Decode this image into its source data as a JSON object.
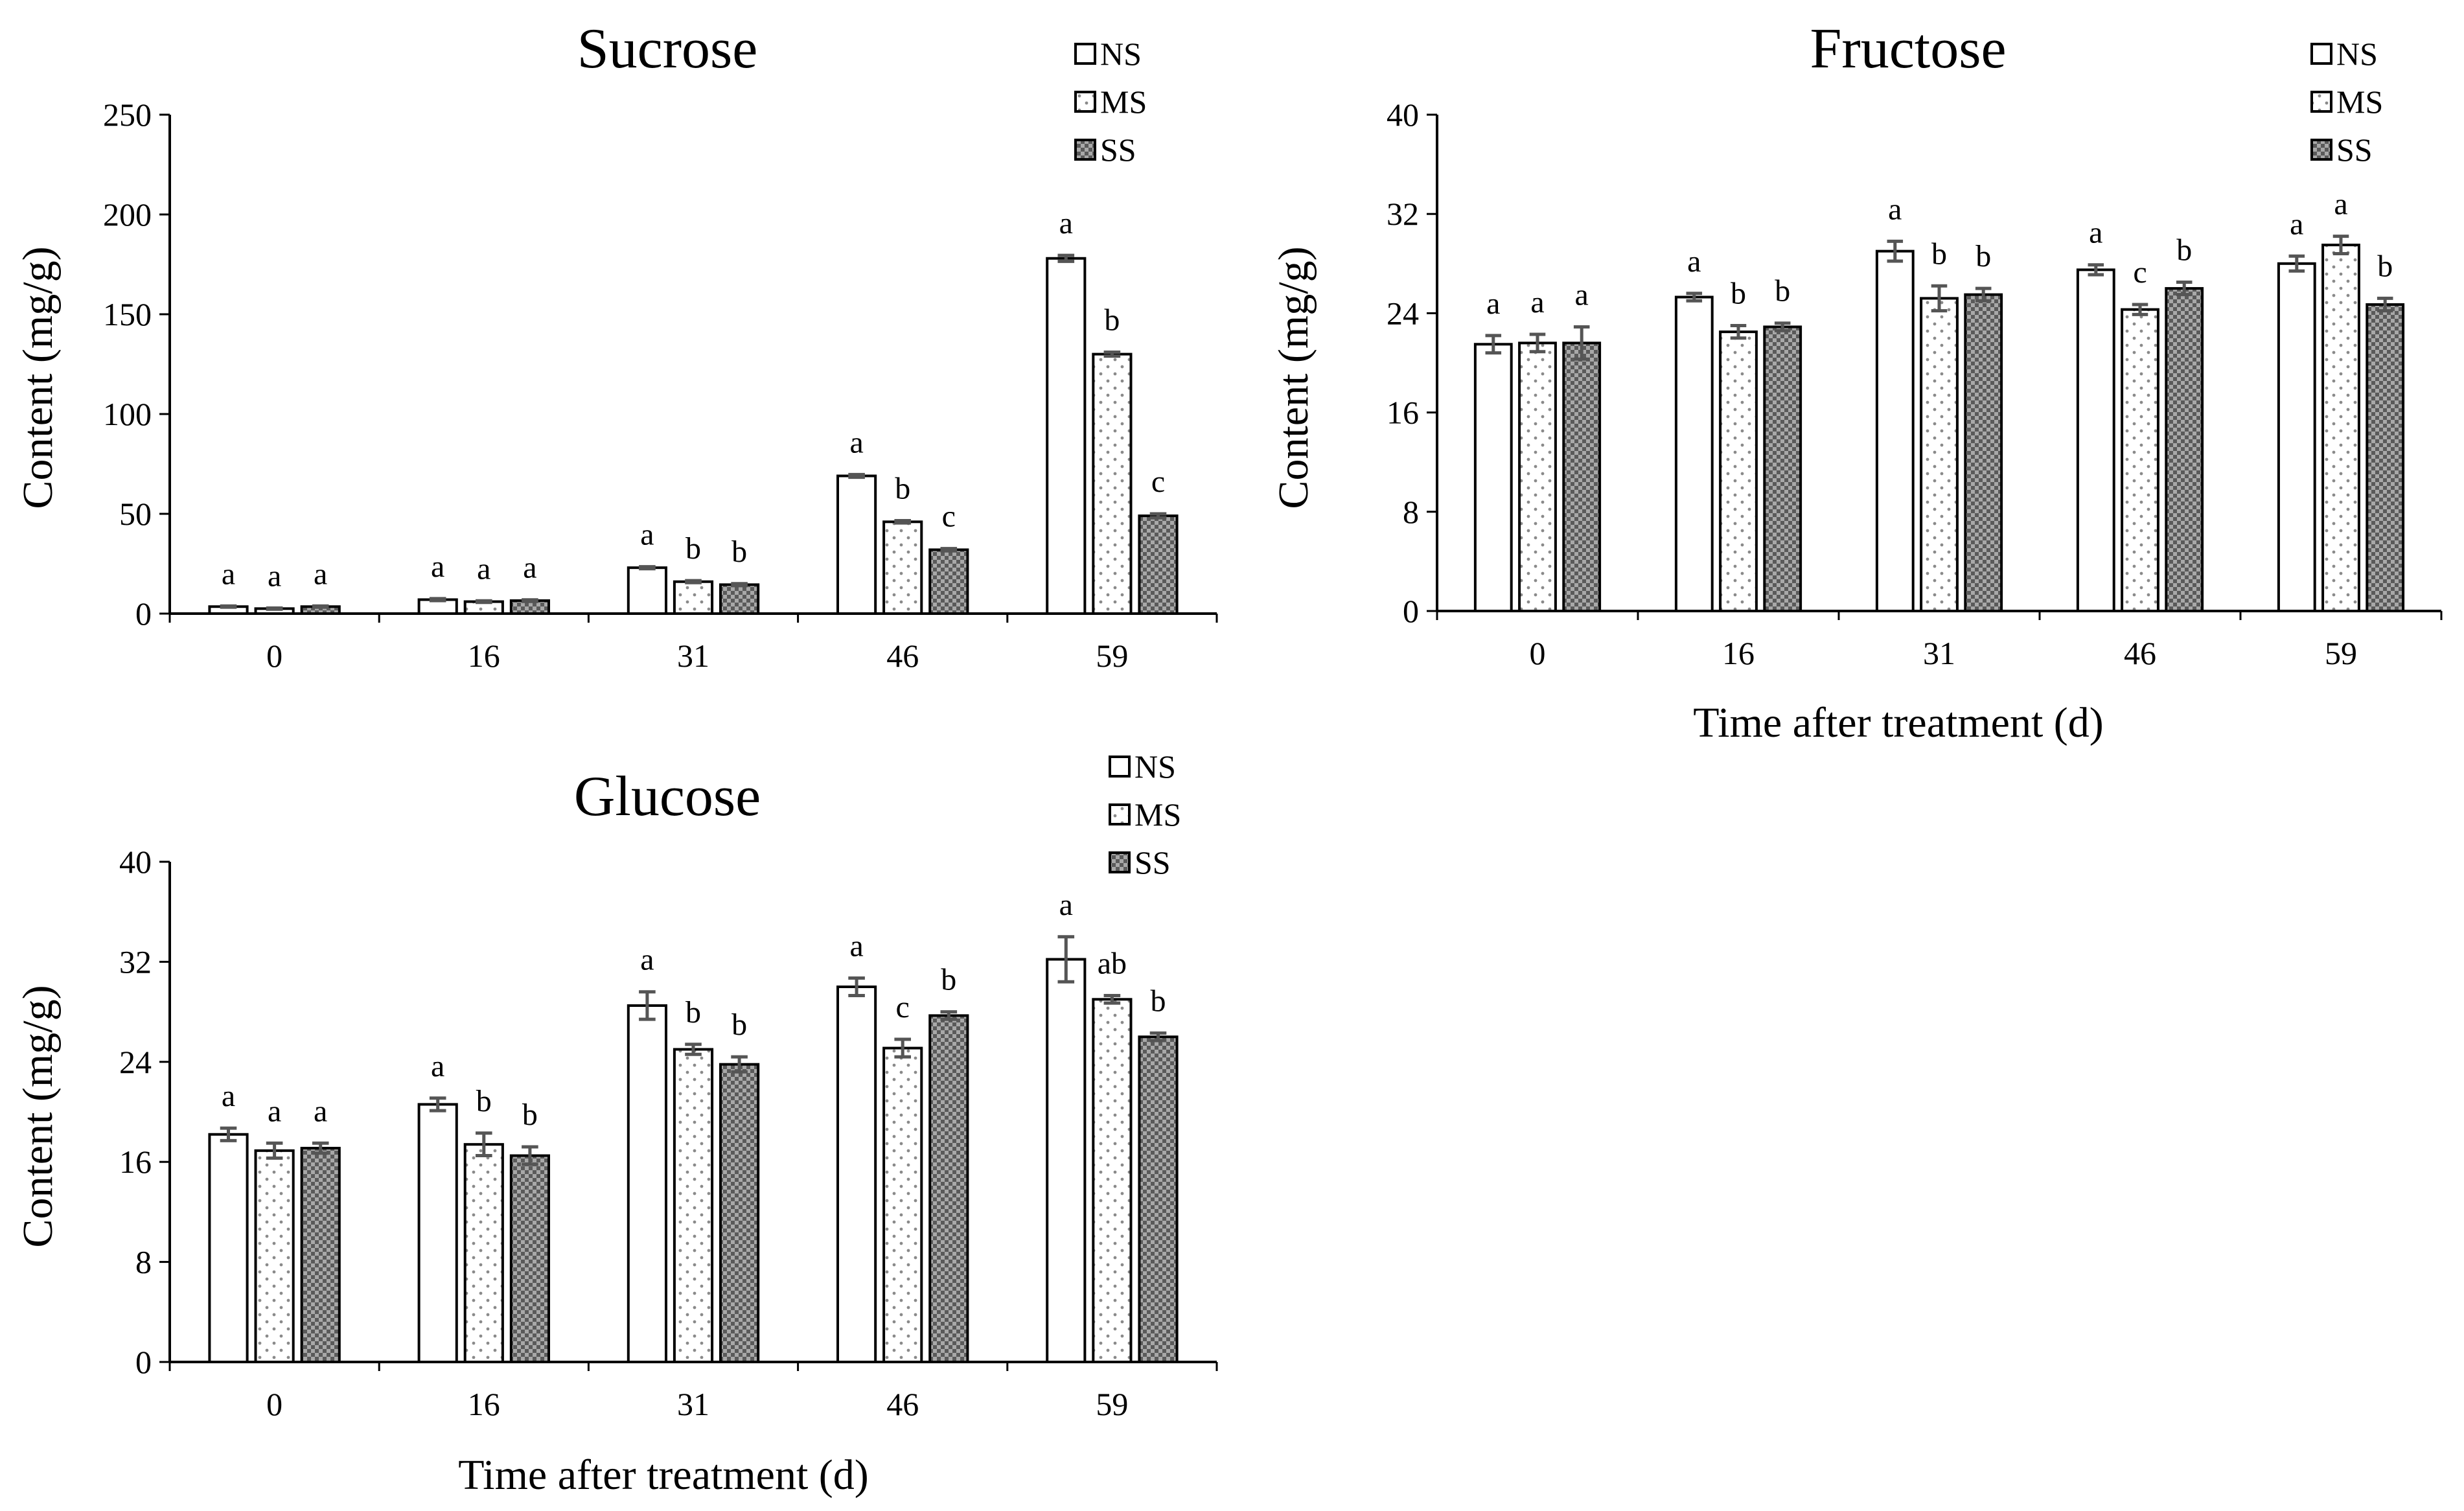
{
  "chart_data": [
    {
      "id": "sucrose",
      "type": "bar",
      "title": "Sucrose",
      "ylabel": "Content (mg/g)",
      "xlabel": "",
      "ylim": [
        0,
        250
      ],
      "yticks": [
        0,
        50,
        100,
        150,
        200,
        250
      ],
      "categories": [
        "0",
        "16",
        "31",
        "46",
        "59"
      ],
      "legend": "top-right",
      "series": [
        {
          "name": "NS",
          "values": [
            3.5,
            7,
            23,
            69,
            178
          ],
          "errors": [
            0.3,
            0.5,
            0.5,
            0.7,
            1.5
          ],
          "labels": [
            "a",
            "a",
            "a",
            "a",
            "a"
          ]
        },
        {
          "name": "MS",
          "values": [
            2.5,
            6,
            16,
            46,
            130
          ],
          "errors": [
            0.3,
            0.4,
            0.5,
            0.6,
            1.0
          ],
          "labels": [
            "a",
            "a",
            "b",
            "b",
            "b"
          ]
        },
        {
          "name": "SS",
          "values": [
            3.5,
            6.5,
            14.5,
            32,
            49
          ],
          "errors": [
            0.3,
            0.4,
            0.5,
            0.6,
            1.0
          ],
          "labels": [
            "a",
            "a",
            "b",
            "c",
            "c"
          ]
        }
      ]
    },
    {
      "id": "fructose",
      "type": "bar",
      "title": "Fructose",
      "ylabel": "Content (mg/g)",
      "xlabel": "Time after treatment (d)",
      "ylim": [
        0,
        40
      ],
      "yticks": [
        0,
        8,
        16,
        24,
        32,
        40
      ],
      "categories": [
        "0",
        "16",
        "31",
        "46",
        "59"
      ],
      "legend": "top-right",
      "series": [
        {
          "name": "NS",
          "values": [
            21.5,
            25.3,
            29.0,
            27.5,
            28.0
          ],
          "errors": [
            0.7,
            0.3,
            0.8,
            0.4,
            0.6
          ],
          "labels": [
            "a",
            "a",
            "a",
            "a",
            "a"
          ]
        },
        {
          "name": "MS",
          "values": [
            21.6,
            22.5,
            25.2,
            24.3,
            29.5
          ],
          "errors": [
            0.7,
            0.5,
            1.0,
            0.4,
            0.7
          ],
          "labels": [
            "a",
            "b",
            "b",
            "c",
            "a"
          ]
        },
        {
          "name": "SS",
          "values": [
            21.6,
            22.9,
            25.5,
            26.0,
            24.7
          ],
          "errors": [
            1.3,
            0.3,
            0.5,
            0.5,
            0.5
          ],
          "labels": [
            "a",
            "b",
            "b",
            "b",
            "b"
          ]
        }
      ]
    },
    {
      "id": "glucose",
      "type": "bar",
      "title": "Glucose",
      "ylabel": "Content (mg/g)",
      "xlabel": "Time after treatment (d)",
      "ylim": [
        0,
        40
      ],
      "yticks": [
        0,
        8,
        16,
        24,
        32,
        40
      ],
      "categories": [
        "0",
        "16",
        "31",
        "46",
        "59"
      ],
      "legend": "top-right",
      "series": [
        {
          "name": "NS",
          "values": [
            18.2,
            20.6,
            28.5,
            30.0,
            32.2
          ],
          "errors": [
            0.5,
            0.5,
            1.1,
            0.7,
            1.8
          ],
          "labels": [
            "a",
            "a",
            "a",
            "a",
            "a"
          ]
        },
        {
          "name": "MS",
          "values": [
            16.9,
            17.4,
            25.0,
            25.1,
            29.0
          ],
          "errors": [
            0.6,
            0.9,
            0.4,
            0.7,
            0.3
          ],
          "labels": [
            "a",
            "b",
            "b",
            "c",
            "ab"
          ]
        },
        {
          "name": "SS",
          "values": [
            17.1,
            16.5,
            23.8,
            27.7,
            26.0
          ],
          "errors": [
            0.4,
            0.7,
            0.6,
            0.3,
            0.3
          ],
          "labels": [
            "a",
            "b",
            "b",
            "b",
            "b"
          ]
        }
      ]
    }
  ]
}
